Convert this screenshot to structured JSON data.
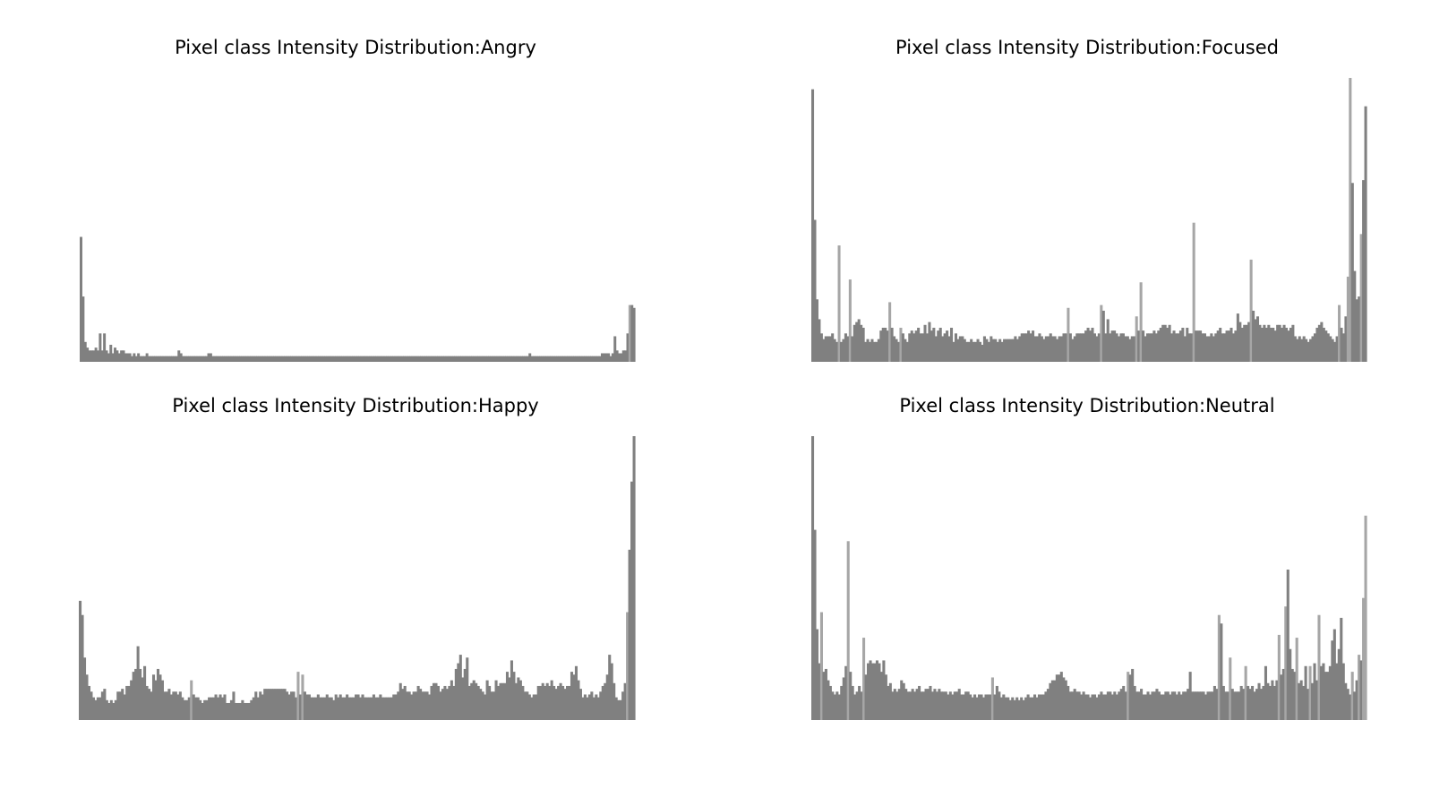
{
  "figure": {
    "background": "#ffffff",
    "bar_color": "#808080",
    "bar_highlight_color": "#a6a6a6"
  },
  "chart_data": [
    {
      "type": "bar",
      "title": "Pixel class Intensity Distribution:Angry",
      "axis_visible": false,
      "grid": false,
      "legend": "none",
      "x_range": [
        0,
        255
      ],
      "ylim": [
        0,
        1
      ],
      "series": [
        {
          "values": [
            0.44,
            0.23,
            0.07,
            0.05,
            0.04,
            0.04,
            0.04,
            0.05,
            0.04,
            0.1,
            0.04,
            0.1,
            0.04,
            0.03,
            0.06,
            0.03,
            0.05,
            0.04,
            0.03,
            0.04,
            0.04,
            0.03,
            0.03,
            0.03,
            0.02,
            0.03,
            0.02,
            0.03,
            0.02,
            0.02,
            0.02,
            0.03,
            0.02,
            0.02,
            0.02,
            0.02,
            0.02,
            0.02,
            0.02,
            0.02,
            0.02,
            0.02,
            0.02,
            0.02,
            0.02,
            0.02,
            0.04,
            0.03,
            0.02,
            0.02,
            0.02,
            0.02,
            0.02,
            0.02,
            0.02,
            0.02,
            0.02,
            0.02,
            0.02,
            0.02,
            0.03,
            0.03,
            0.02,
            0.02,
            0.02,
            0.02,
            0.02,
            0.02,
            0.02,
            0.02,
            0.02,
            0.02,
            0.02,
            0.02,
            0.02,
            0.02,
            0.02,
            0.02,
            0.02,
            0.02,
            0.02,
            0.02,
            0.02,
            0.02,
            0.02,
            0.02,
            0.02,
            0.02,
            0.02,
            0.02,
            0.02,
            0.02,
            0.02,
            0.02,
            0.02,
            0.02,
            0.02,
            0.02,
            0.02,
            0.02,
            0.02,
            0.02,
            0.02,
            0.02,
            0.02,
            0.02,
            0.02,
            0.02,
            0.02,
            0.02,
            0.02,
            0.02,
            0.02,
            0.02,
            0.02,
            0.02,
            0.02,
            0.02,
            0.02,
            0.02,
            0.02,
            0.02,
            0.02,
            0.02,
            0.02,
            0.02,
            0.02,
            0.02,
            0.02,
            0.02,
            0.02,
            0.02,
            0.02,
            0.02,
            0.02,
            0.02,
            0.02,
            0.02,
            0.02,
            0.02,
            0.02,
            0.02,
            0.02,
            0.02,
            0.02,
            0.02,
            0.02,
            0.02,
            0.02,
            0.02,
            0.02,
            0.02,
            0.02,
            0.02,
            0.02,
            0.02,
            0.02,
            0.02,
            0.02,
            0.02,
            0.02,
            0.02,
            0.02,
            0.02,
            0.02,
            0.02,
            0.02,
            0.02,
            0.02,
            0.02,
            0.02,
            0.02,
            0.02,
            0.02,
            0.02,
            0.02,
            0.02,
            0.02,
            0.02,
            0.02,
            0.02,
            0.02,
            0.02,
            0.02,
            0.02,
            0.02,
            0.02,
            0.02,
            0.02,
            0.02,
            0.02,
            0.02,
            0.02,
            0.02,
            0.02,
            0.02,
            0.02,
            0.02,
            0.02,
            0.02,
            0.02,
            0.02,
            0.02,
            0.02,
            0.02,
            0.02,
            0.02,
            0.02,
            0.02,
            0.02,
            0.02,
            0.03,
            0.02,
            0.02,
            0.02,
            0.02,
            0.02,
            0.02,
            0.02,
            0.02,
            0.02,
            0.02,
            0.02,
            0.02,
            0.02,
            0.02,
            0.02,
            0.02,
            0.02,
            0.02,
            0.02,
            0.02,
            0.02,
            0.02,
            0.02,
            0.02,
            0.02,
            0.02,
            0.02,
            0.02,
            0.02,
            0.02,
            0.02,
            0.02,
            0.02,
            0.03,
            0.03,
            0.03,
            0.03,
            0.02,
            0.03,
            0.09,
            0.04,
            0.03,
            0.03,
            0.04,
            0.04,
            0.1,
            0.2,
            0.2,
            0.19
          ]
        }
      ]
    },
    {
      "type": "bar",
      "title": "Pixel class Intensity Distribution:Focused",
      "axis_visible": false,
      "grid": false,
      "legend": "none",
      "x_range": [
        0,
        255
      ],
      "ylim": [
        0,
        1
      ],
      "series": [
        {
          "values": [
            0.96,
            0.5,
            0.22,
            0.15,
            0.1,
            0.08,
            0.09,
            0.09,
            0.09,
            0.1,
            0.08,
            0.07,
            0.41,
            0.07,
            0.08,
            0.1,
            0.09,
            0.29,
            0.09,
            0.13,
            0.14,
            0.15,
            0.13,
            0.12,
            0.07,
            0.08,
            0.07,
            0.08,
            0.07,
            0.07,
            0.08,
            0.11,
            0.12,
            0.12,
            0.11,
            0.21,
            0.12,
            0.09,
            0.08,
            0.07,
            0.12,
            0.1,
            0.08,
            0.07,
            0.1,
            0.11,
            0.1,
            0.11,
            0.12,
            0.1,
            0.1,
            0.13,
            0.1,
            0.14,
            0.11,
            0.12,
            0.09,
            0.11,
            0.12,
            0.09,
            0.1,
            0.11,
            0.09,
            0.12,
            0.07,
            0.1,
            0.08,
            0.09,
            0.09,
            0.08,
            0.07,
            0.07,
            0.08,
            0.07,
            0.07,
            0.08,
            0.07,
            0.06,
            0.09,
            0.08,
            0.07,
            0.09,
            0.08,
            0.08,
            0.07,
            0.08,
            0.07,
            0.08,
            0.08,
            0.08,
            0.08,
            0.08,
            0.09,
            0.08,
            0.09,
            0.1,
            0.1,
            0.1,
            0.11,
            0.1,
            0.11,
            0.09,
            0.09,
            0.1,
            0.09,
            0.08,
            0.09,
            0.09,
            0.1,
            0.09,
            0.09,
            0.08,
            0.09,
            0.09,
            0.1,
            0.1,
            0.19,
            0.1,
            0.08,
            0.09,
            0.1,
            0.1,
            0.1,
            0.1,
            0.11,
            0.12,
            0.11,
            0.12,
            0.1,
            0.09,
            0.1,
            0.2,
            0.18,
            0.1,
            0.15,
            0.1,
            0.11,
            0.11,
            0.1,
            0.09,
            0.1,
            0.1,
            0.09,
            0.09,
            0.08,
            0.09,
            0.09,
            0.16,
            0.11,
            0.28,
            0.11,
            0.09,
            0.1,
            0.1,
            0.1,
            0.11,
            0.1,
            0.11,
            0.12,
            0.13,
            0.13,
            0.12,
            0.13,
            0.1,
            0.11,
            0.1,
            0.1,
            0.11,
            0.12,
            0.09,
            0.12,
            0.1,
            0.1,
            0.49,
            0.11,
            0.11,
            0.11,
            0.1,
            0.1,
            0.09,
            0.09,
            0.1,
            0.09,
            0.1,
            0.11,
            0.12,
            0.1,
            0.1,
            0.11,
            0.11,
            0.12,
            0.1,
            0.11,
            0.17,
            0.14,
            0.12,
            0.13,
            0.13,
            0.14,
            0.36,
            0.18,
            0.15,
            0.16,
            0.13,
            0.12,
            0.13,
            0.12,
            0.13,
            0.12,
            0.12,
            0.11,
            0.13,
            0.13,
            0.12,
            0.13,
            0.12,
            0.11,
            0.12,
            0.13,
            0.09,
            0.08,
            0.09,
            0.08,
            0.09,
            0.08,
            0.07,
            0.08,
            0.09,
            0.1,
            0.12,
            0.13,
            0.14,
            0.12,
            0.11,
            0.1,
            0.09,
            0.08,
            0.07,
            0.09,
            0.2,
            0.12,
            0.1,
            0.16,
            0.3,
            1.0,
            0.63,
            0.32,
            0.22,
            0.23,
            0.45,
            0.64,
            0.9
          ]
        }
      ]
    },
    {
      "type": "bar",
      "title": "Pixel class Intensity Distribution:Happy",
      "axis_visible": false,
      "grid": false,
      "legend": "none",
      "x_range": [
        0,
        255
      ],
      "ylim": [
        0,
        1
      ],
      "series": [
        {
          "values": [
            0.42,
            0.37,
            0.22,
            0.16,
            0.12,
            0.1,
            0.08,
            0.07,
            0.08,
            0.08,
            0.1,
            0.11,
            0.07,
            0.06,
            0.07,
            0.06,
            0.07,
            0.1,
            0.1,
            0.11,
            0.09,
            0.12,
            0.12,
            0.14,
            0.17,
            0.18,
            0.26,
            0.18,
            0.15,
            0.19,
            0.12,
            0.11,
            0.1,
            0.16,
            0.14,
            0.18,
            0.16,
            0.14,
            0.1,
            0.1,
            0.11,
            0.09,
            0.1,
            0.1,
            0.09,
            0.1,
            0.08,
            0.07,
            0.07,
            0.08,
            0.14,
            0.09,
            0.08,
            0.08,
            0.07,
            0.06,
            0.07,
            0.07,
            0.08,
            0.08,
            0.08,
            0.09,
            0.08,
            0.09,
            0.08,
            0.09,
            0.06,
            0.06,
            0.07,
            0.1,
            0.06,
            0.06,
            0.06,
            0.07,
            0.06,
            0.06,
            0.06,
            0.07,
            0.08,
            0.1,
            0.08,
            0.1,
            0.09,
            0.11,
            0.11,
            0.11,
            0.11,
            0.11,
            0.11,
            0.11,
            0.11,
            0.11,
            0.11,
            0.1,
            0.09,
            0.1,
            0.1,
            0.08,
            0.17,
            0.09,
            0.16,
            0.1,
            0.09,
            0.09,
            0.08,
            0.08,
            0.08,
            0.09,
            0.08,
            0.08,
            0.08,
            0.09,
            0.08,
            0.08,
            0.07,
            0.09,
            0.08,
            0.09,
            0.08,
            0.08,
            0.09,
            0.08,
            0.08,
            0.08,
            0.09,
            0.09,
            0.08,
            0.09,
            0.08,
            0.08,
            0.08,
            0.08,
            0.09,
            0.08,
            0.08,
            0.09,
            0.08,
            0.08,
            0.08,
            0.08,
            0.08,
            0.09,
            0.09,
            0.1,
            0.13,
            0.11,
            0.12,
            0.1,
            0.1,
            0.09,
            0.1,
            0.1,
            0.12,
            0.11,
            0.1,
            0.1,
            0.1,
            0.09,
            0.12,
            0.13,
            0.13,
            0.12,
            0.1,
            0.11,
            0.12,
            0.11,
            0.12,
            0.14,
            0.12,
            0.18,
            0.2,
            0.23,
            0.15,
            0.18,
            0.22,
            0.12,
            0.13,
            0.14,
            0.13,
            0.12,
            0.11,
            0.1,
            0.09,
            0.14,
            0.12,
            0.1,
            0.1,
            0.14,
            0.12,
            0.13,
            0.13,
            0.13,
            0.17,
            0.15,
            0.21,
            0.17,
            0.13,
            0.15,
            0.14,
            0.12,
            0.1,
            0.1,
            0.09,
            0.08,
            0.09,
            0.09,
            0.12,
            0.12,
            0.13,
            0.12,
            0.13,
            0.12,
            0.14,
            0.12,
            0.11,
            0.12,
            0.13,
            0.12,
            0.11,
            0.12,
            0.12,
            0.17,
            0.16,
            0.19,
            0.14,
            0.11,
            0.08,
            0.09,
            0.08,
            0.09,
            0.1,
            0.08,
            0.09,
            0.08,
            0.1,
            0.12,
            0.13,
            0.16,
            0.23,
            0.2,
            0.13,
            0.08,
            0.07,
            0.07,
            0.1,
            0.13,
            0.38,
            0.6,
            0.84,
            1.0
          ]
        }
      ]
    },
    {
      "type": "bar",
      "title": "Pixel class Intensity Distribution:Neutral",
      "axis_visible": false,
      "grid": false,
      "legend": "none",
      "x_range": [
        0,
        255
      ],
      "ylim": [
        0,
        1
      ],
      "series": [
        {
          "values": [
            1.0,
            0.67,
            0.32,
            0.2,
            0.38,
            0.17,
            0.18,
            0.14,
            0.12,
            0.1,
            0.09,
            0.1,
            0.09,
            0.12,
            0.15,
            0.19,
            0.63,
            0.17,
            0.12,
            0.09,
            0.1,
            0.12,
            0.1,
            0.29,
            0.16,
            0.2,
            0.21,
            0.2,
            0.2,
            0.21,
            0.2,
            0.17,
            0.21,
            0.16,
            0.12,
            0.13,
            0.1,
            0.11,
            0.1,
            0.11,
            0.14,
            0.13,
            0.11,
            0.1,
            0.1,
            0.11,
            0.1,
            0.11,
            0.12,
            0.1,
            0.1,
            0.11,
            0.11,
            0.12,
            0.1,
            0.11,
            0.1,
            0.11,
            0.1,
            0.1,
            0.1,
            0.09,
            0.1,
            0.09,
            0.1,
            0.1,
            0.11,
            0.09,
            0.09,
            0.1,
            0.1,
            0.09,
            0.08,
            0.09,
            0.08,
            0.09,
            0.09,
            0.08,
            0.09,
            0.09,
            0.09,
            0.15,
            0.09,
            0.12,
            0.1,
            0.08,
            0.09,
            0.08,
            0.08,
            0.07,
            0.08,
            0.07,
            0.08,
            0.07,
            0.08,
            0.07,
            0.08,
            0.09,
            0.08,
            0.08,
            0.09,
            0.08,
            0.09,
            0.09,
            0.09,
            0.1,
            0.11,
            0.13,
            0.14,
            0.14,
            0.16,
            0.16,
            0.17,
            0.15,
            0.14,
            0.12,
            0.1,
            0.1,
            0.11,
            0.1,
            0.1,
            0.09,
            0.1,
            0.09,
            0.09,
            0.08,
            0.09,
            0.09,
            0.08,
            0.09,
            0.1,
            0.09,
            0.09,
            0.1,
            0.1,
            0.09,
            0.1,
            0.09,
            0.1,
            0.11,
            0.12,
            0.1,
            0.17,
            0.16,
            0.18,
            0.12,
            0.1,
            0.1,
            0.11,
            0.09,
            0.09,
            0.1,
            0.09,
            0.1,
            0.1,
            0.11,
            0.1,
            0.09,
            0.09,
            0.1,
            0.1,
            0.09,
            0.1,
            0.1,
            0.09,
            0.1,
            0.09,
            0.1,
            0.1,
            0.11,
            0.17,
            0.1,
            0.1,
            0.1,
            0.1,
            0.1,
            0.1,
            0.09,
            0.1,
            0.1,
            0.1,
            0.12,
            0.11,
            0.37,
            0.34,
            0.12,
            0.1,
            0.1,
            0.22,
            0.11,
            0.1,
            0.1,
            0.1,
            0.12,
            0.11,
            0.19,
            0.12,
            0.11,
            0.12,
            0.1,
            0.11,
            0.13,
            0.11,
            0.12,
            0.19,
            0.13,
            0.12,
            0.14,
            0.12,
            0.14,
            0.3,
            0.16,
            0.18,
            0.4,
            0.53,
            0.25,
            0.18,
            0.17,
            0.29,
            0.13,
            0.14,
            0.12,
            0.19,
            0.11,
            0.19,
            0.13,
            0.2,
            0.14,
            0.37,
            0.19,
            0.2,
            0.17,
            0.17,
            0.19,
            0.28,
            0.32,
            0.2,
            0.25,
            0.36,
            0.2,
            0.13,
            0.11,
            0.09,
            0.17,
            0.1,
            0.14,
            0.23,
            0.21,
            0.43,
            0.72
          ]
        }
      ]
    }
  ]
}
